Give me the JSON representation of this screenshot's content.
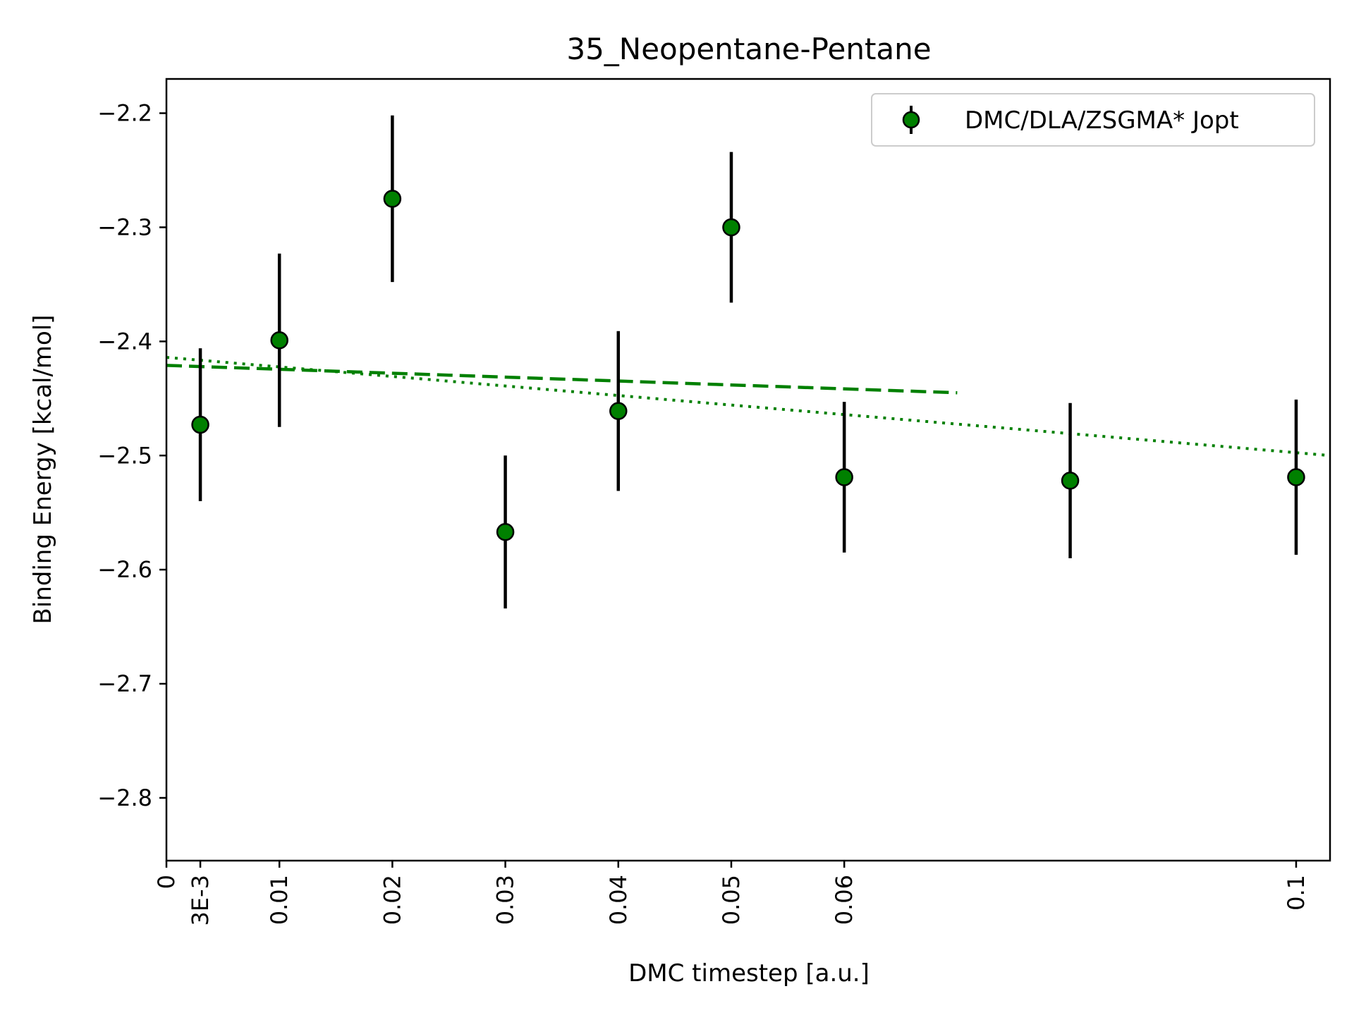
{
  "chart_data": {
    "type": "scatter",
    "title": "35_Neopentane-Pentane",
    "xlabel": "DMC timestep [a.u.]",
    "ylabel": "Binding Energy [kcal/mol]",
    "xlim": [
      0,
      0.103
    ],
    "ylim": [
      -2.855,
      -2.17
    ],
    "x_ticks": [
      {
        "value": 0,
        "label": "0"
      },
      {
        "value": 0.003,
        "label": "3E-3"
      },
      {
        "value": 0.01,
        "label": "0.01"
      },
      {
        "value": 0.02,
        "label": "0.02"
      },
      {
        "value": 0.03,
        "label": "0.03"
      },
      {
        "value": 0.04,
        "label": "0.04"
      },
      {
        "value": 0.05,
        "label": "0.05"
      },
      {
        "value": 0.06,
        "label": "0.06"
      },
      {
        "value": 0.1,
        "label": "0.1"
      }
    ],
    "y_ticks": [
      {
        "value": -2.2,
        "label": "−2.2"
      },
      {
        "value": -2.3,
        "label": "−2.3"
      },
      {
        "value": -2.4,
        "label": "−2.4"
      },
      {
        "value": -2.5,
        "label": "−2.5"
      },
      {
        "value": -2.6,
        "label": "−2.6"
      },
      {
        "value": -2.7,
        "label": "−2.7"
      },
      {
        "value": -2.8,
        "label": "−2.8"
      }
    ],
    "grid": false,
    "legend_position": "top-right",
    "series": [
      {
        "name": "DMC/DLA/ZSGMA* Jopt",
        "color": "#008000",
        "marker_edge_color": "#000000",
        "errorbar_color": "#000000",
        "points": [
          {
            "x": 0.003,
            "y": -2.473,
            "err": 0.067
          },
          {
            "x": 0.01,
            "y": -2.399,
            "err": 0.076
          },
          {
            "x": 0.02,
            "y": -2.275,
            "err": 0.073
          },
          {
            "x": 0.03,
            "y": -2.567,
            "err": 0.067
          },
          {
            "x": 0.04,
            "y": -2.461,
            "err": 0.07
          },
          {
            "x": 0.05,
            "y": -2.3,
            "err": 0.066
          },
          {
            "x": 0.06,
            "y": -2.519,
            "err": 0.066
          },
          {
            "x": 0.08,
            "y": -2.522,
            "err": 0.068
          },
          {
            "x": 0.1,
            "y": -2.519,
            "err": 0.068
          }
        ]
      }
    ],
    "fit_lines": [
      {
        "style": "dashed",
        "color": "#008000",
        "x": [
          0,
          0.07
        ],
        "y": [
          -2.421,
          -2.445
        ]
      },
      {
        "style": "dotted",
        "color": "#008000",
        "x": [
          0,
          0.103
        ],
        "y": [
          -2.414,
          -2.5
        ]
      }
    ]
  }
}
